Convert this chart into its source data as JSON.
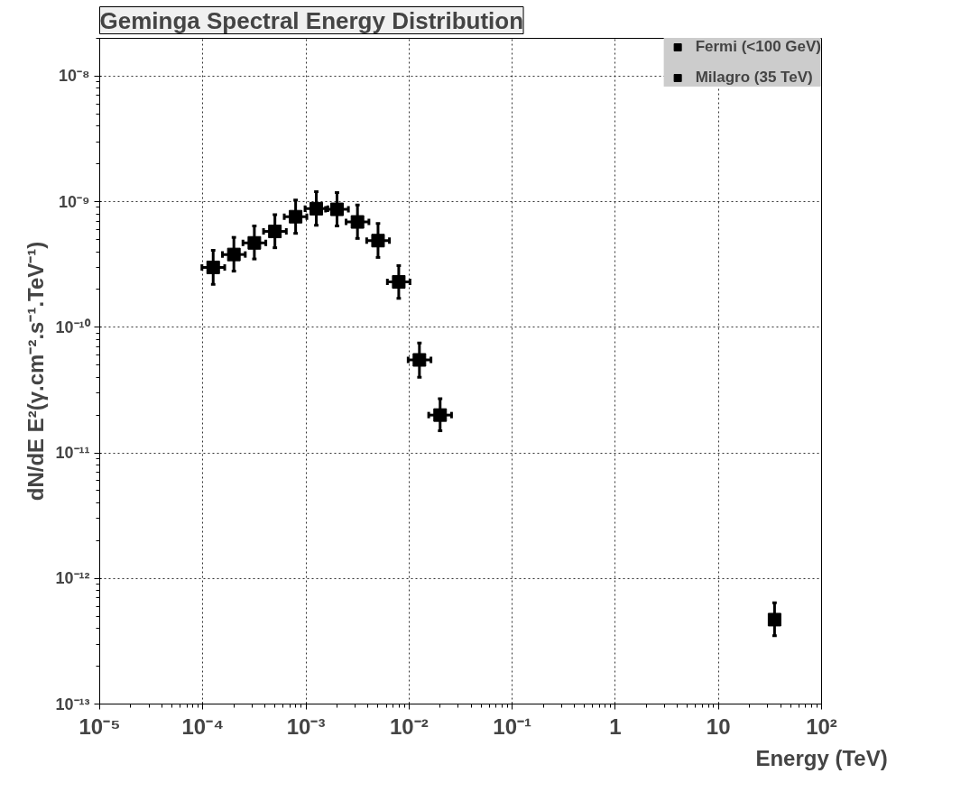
{
  "chart_data": {
    "type": "scatter",
    "title": "Geminga Spectral Energy Distribution",
    "xlabel": "Energy (TeV)",
    "ylabel": "dN/dE E²(γ.cm⁻².s⁻¹.TeV⁻¹)",
    "log": "xy",
    "grid": true,
    "legend": "top right",
    "marker": "square",
    "xlim": [
      1e-05,
      100
    ],
    "ylim": [
      1e-13,
      2e-08
    ],
    "xticks": [
      {
        "value": 1e-05,
        "label": "10⁻⁵"
      },
      {
        "value": 0.0001,
        "label": "10⁻⁴"
      },
      {
        "value": 0.001,
        "label": "10⁻³"
      },
      {
        "value": 0.01,
        "label": "10⁻²"
      },
      {
        "value": 0.1,
        "label": "10⁻¹"
      },
      1,
      10,
      {
        "value": 100,
        "label": "10²"
      }
    ],
    "yticks": [
      {
        "value": 1e-13,
        "label": "10⁻¹³"
      },
      {
        "value": 1e-12,
        "label": "10⁻¹²"
      },
      {
        "value": 1e-11,
        "label": "10⁻¹¹"
      },
      {
        "value": 1e-10,
        "label": "10⁻¹⁰"
      },
      {
        "value": 1e-09,
        "label": "10⁻⁹"
      },
      {
        "value": 1e-08,
        "label": "10⁻⁸"
      }
    ],
    "series": [
      {
        "name": "Fermi (<100 GeV)",
        "color": "#000000",
        "x": [
          0.000126,
          0.0002,
          0.000316,
          0.0005,
          0.000794,
          0.00126,
          0.002,
          0.00316,
          0.005,
          0.00794,
          0.0126,
          0.02
        ],
        "values": [
          3e-10,
          3.8e-10,
          4.7e-10,
          5.8e-10,
          7.6e-10,
          8.8e-10,
          8.7e-10,
          6.9e-10,
          4.9e-10,
          2.3e-10,
          5.5e-11,
          2e-11
        ],
        "errors": [
          [
            2.2e-10,
            4.1e-10
          ],
          [
            2.8e-10,
            5.2e-10
          ],
          [
            3.5e-10,
            6.4e-10
          ],
          [
            4.3e-10,
            7.9e-10
          ],
          [
            5.6e-10,
            1.03e-09
          ],
          [
            6.5e-10,
            1.2e-09
          ],
          [
            6.4e-10,
            1.18e-09
          ],
          [
            5.1e-10,
            9.4e-10
          ],
          [
            3.6e-10,
            6.7e-10
          ],
          [
            1.7e-10,
            3.1e-10
          ],
          [
            4e-11,
            7.5e-11
          ],
          [
            1.5e-11,
            2.7e-11
          ]
        ],
        "xerrors": [
          [
            9.8e-05,
            0.000163
          ],
          [
            0.000155,
            0.000258
          ],
          [
            0.000245,
            0.000408
          ],
          [
            0.000388,
            0.000645
          ],
          [
            0.000616,
            0.00102
          ],
          [
            0.00098,
            0.00163
          ],
          [
            0.00155,
            0.00258
          ],
          [
            0.00245,
            0.00408
          ],
          [
            0.00388,
            0.00645
          ],
          [
            0.00616,
            0.0102
          ],
          [
            0.0098,
            0.0163
          ],
          [
            0.0155,
            0.0258
          ]
        ]
      },
      {
        "name": "Milagro (35 TeV)",
        "color": "#000000",
        "x": [
          35
        ],
        "values": [
          4.7e-13
        ],
        "errors": [
          [
            3.5e-13,
            6.4e-13
          ]
        ]
      }
    ]
  }
}
